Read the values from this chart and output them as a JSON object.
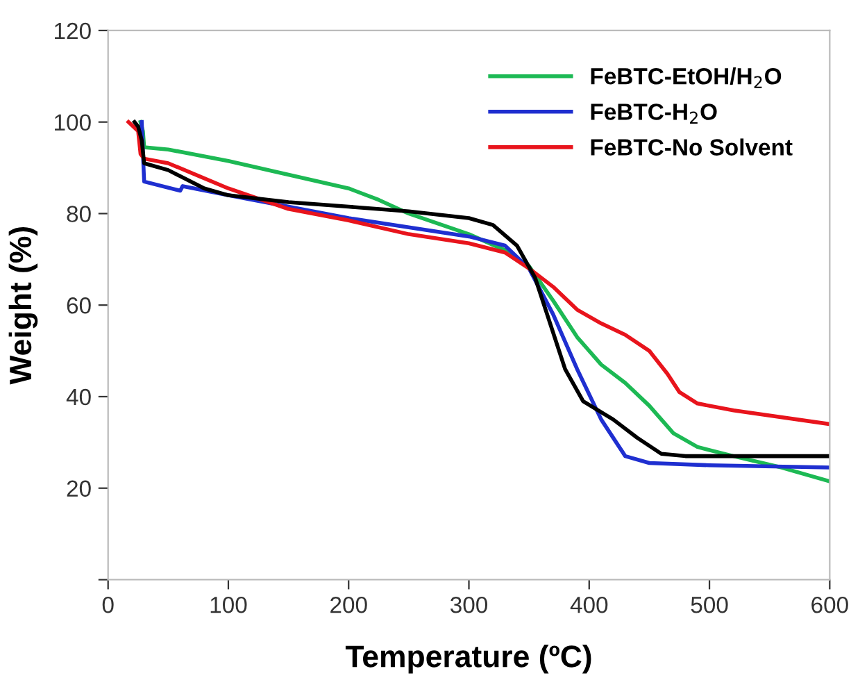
{
  "chart_data": {
    "type": "line",
    "xlabel": "Temperature (ºC)",
    "ylabel": "Weight (%)",
    "xlim": [
      0,
      600
    ],
    "xticks": [
      0,
      100,
      200,
      300,
      400,
      500,
      600
    ],
    "ylim": [
      0,
      120
    ],
    "yticks": [
      {
        "value": 0,
        "label": null
      },
      20,
      40,
      60,
      80,
      100,
      120
    ],
    "grid": false,
    "legend": "top right",
    "marker": "none",
    "line_style": "solid",
    "series": [
      {
        "name": "FeBTC-EtOH/H$_{2}$O",
        "color": "#1db954",
        "x": [
          27,
          29,
          30,
          50,
          100,
          150,
          200,
          225,
          250,
          300,
          330,
          350,
          370,
          390,
          410,
          430,
          450,
          470,
          490,
          520,
          560,
          600
        ],
        "values": [
          100,
          98,
          94.5,
          94,
          91.5,
          88.5,
          85.5,
          83,
          80,
          75.5,
          72,
          68.5,
          61,
          53,
          47,
          43,
          38,
          32,
          29,
          27,
          24.5,
          21.5
        ]
      },
      {
        "name": "FeBTC-H$_{2}$O",
        "color": "#1f2fd0",
        "x": [
          28,
          29,
          30,
          60,
          62,
          100,
          150,
          200,
          250,
          300,
          330,
          350,
          370,
          390,
          410,
          430,
          450,
          500,
          600
        ],
        "values": [
          100,
          93,
          87,
          85,
          86,
          84,
          81.5,
          79,
          77,
          75,
          73,
          68,
          58,
          46,
          35,
          27,
          25.5,
          25,
          24.5
        ]
      },
      {
        "name": "FeBTC-No Solvent",
        "color": "#e8141c",
        "x": [
          17,
          25,
          27,
          30,
          50,
          100,
          150,
          200,
          250,
          300,
          330,
          350,
          370,
          390,
          410,
          430,
          450,
          465,
          475,
          490,
          520,
          600
        ],
        "values": [
          100,
          98,
          93,
          92,
          91,
          85.5,
          81,
          78.5,
          75.5,
          73.5,
          71.5,
          68,
          64,
          59,
          56,
          53.5,
          50,
          45,
          41,
          38.5,
          37,
          34
        ]
      },
      {
        "color": "#000000",
        "x": [
          22,
          25,
          28,
          30,
          50,
          80,
          100,
          150,
          200,
          250,
          300,
          320,
          340,
          355,
          370,
          380,
          395,
          420,
          440,
          460,
          480,
          600
        ],
        "values": [
          100,
          99,
          96,
          91,
          89.5,
          85.5,
          84,
          82.5,
          81.5,
          80.5,
          79,
          77.5,
          73,
          66,
          54,
          46,
          39,
          35,
          31,
          27.5,
          27,
          27
        ]
      }
    ]
  }
}
